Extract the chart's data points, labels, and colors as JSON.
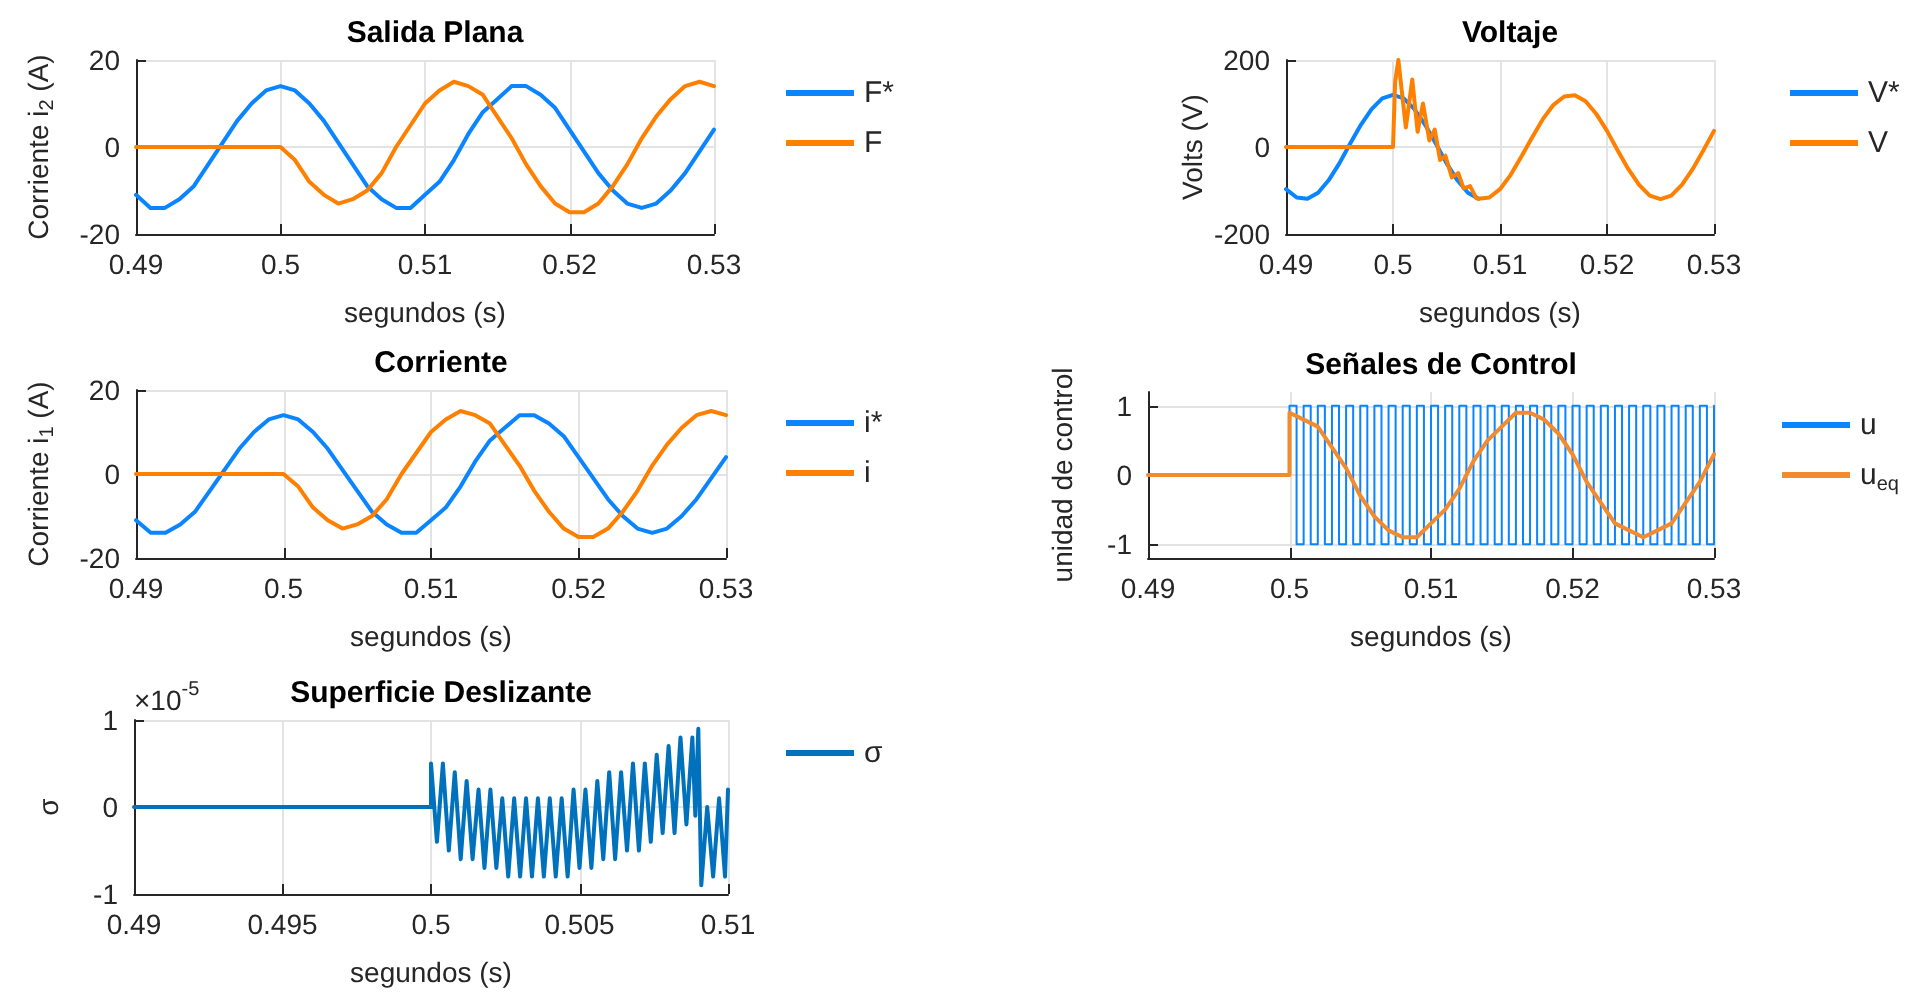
{
  "chart_data": [
    {
      "type": "line",
      "title": "Salida Plana",
      "xlabel": "segundos (s)",
      "ylabel": "Corriente i$_{2}$ (A)",
      "x": [
        0.49,
        0.491,
        0.492,
        0.493,
        0.494,
        0.495,
        0.496,
        0.497,
        0.498,
        0.499,
        0.5,
        0.501,
        0.502,
        0.503,
        0.504,
        0.505,
        0.506,
        0.507,
        0.508,
        0.509,
        0.51,
        0.511,
        0.512,
        0.513,
        0.514,
        0.515,
        0.516,
        0.517,
        0.518,
        0.519,
        0.52,
        0.521,
        0.522,
        0.523,
        0.524,
        0.525,
        0.526,
        0.527,
        0.528,
        0.529,
        0.53
      ],
      "series": [
        {
          "name": "F*",
          "color": "#0a84ff",
          "values": [
            -11,
            -14,
            -14,
            -12,
            -9,
            -4,
            1,
            6,
            10,
            13,
            14,
            13,
            10,
            6,
            1,
            -4,
            -9,
            -12,
            -14,
            -14,
            -11,
            -8,
            -3,
            3,
            8,
            11,
            14,
            14,
            12,
            9,
            4,
            -1,
            -6,
            -10,
            -13,
            -14,
            -13,
            -10,
            -6,
            -1,
            4
          ]
        },
        {
          "name": "F",
          "color": "#ff8000",
          "values": [
            0,
            0,
            0,
            0,
            0,
            0,
            0,
            0,
            0,
            0,
            0,
            -3,
            -8,
            -11,
            -13,
            -12,
            -10,
            -6,
            0,
            5,
            10,
            13,
            15,
            14,
            12,
            7,
            2,
            -4,
            -9,
            -13,
            -15,
            -15,
            -13,
            -9,
            -4,
            2,
            7,
            11,
            14,
            15,
            14
          ]
        }
      ],
      "xlim": [
        0.49,
        0.53
      ],
      "xticks": [
        0.49,
        0.5,
        0.51,
        0.52,
        0.53
      ],
      "ylim": [
        -20,
        20
      ],
      "yticks": [
        -20,
        0,
        20
      ],
      "grid": true,
      "legend": "right"
    },
    {
      "type": "line",
      "title": "Voltaje",
      "xlabel": "segundos (s)",
      "ylabel": "Volts (V)",
      "series": [
        {
          "name": "V*",
          "color": "#0a84ff",
          "x": [
            0.49,
            0.491,
            0.492,
            0.493,
            0.494,
            0.495,
            0.496,
            0.497,
            0.498,
            0.499,
            0.5,
            0.501,
            0.502,
            0.503,
            0.504,
            0.505,
            0.506,
            0.507,
            0.508
          ],
          "values": [
            -97,
            -116,
            -119,
            -105,
            -76,
            -37,
            8,
            51,
            87,
            112,
            120,
            112,
            87,
            51,
            8,
            -37,
            -76,
            -105,
            -119
          ]
        },
        {
          "name": "V",
          "color": "#ff8000",
          "x": [
            0.49,
            0.5,
            0.5002,
            0.5005,
            0.5012,
            0.5018,
            0.5023,
            0.5028,
            0.5034,
            0.5039,
            0.5044,
            0.5049,
            0.5055,
            0.5061,
            0.5066,
            0.5072,
            0.5078,
            0.508,
            0.509,
            0.51,
            0.511,
            0.512,
            0.513,
            0.514,
            0.515,
            0.516,
            0.517,
            0.518,
            0.519,
            0.52,
            0.521,
            0.522,
            0.523,
            0.524,
            0.525,
            0.526,
            0.527,
            0.528,
            0.529,
            0.53
          ],
          "values": [
            0,
            0,
            150,
            200,
            45,
            155,
            35,
            100,
            15,
            40,
            -30,
            -20,
            -70,
            -60,
            -95,
            -90,
            -118,
            -119,
            -116,
            -97,
            -64,
            -22,
            22,
            64,
            97,
            116,
            119,
            105,
            76,
            37,
            -8,
            -51,
            -87,
            -112,
            -120,
            -112,
            -87,
            -51,
            -8,
            37
          ]
        }
      ],
      "xlim": [
        0.49,
        0.53
      ],
      "xticks": [
        0.49,
        0.5,
        0.51,
        0.52,
        0.53
      ],
      "ylim": [
        -200,
        200
      ],
      "yticks": [
        -200,
        0,
        200
      ],
      "grid": true,
      "legend": "right"
    },
    {
      "type": "line",
      "title": "Corriente",
      "xlabel": "segundos (s)",
      "ylabel": "Corriente i$_{1}$ (A)",
      "x": [
        0.49,
        0.491,
        0.492,
        0.493,
        0.494,
        0.495,
        0.496,
        0.497,
        0.498,
        0.499,
        0.5,
        0.501,
        0.502,
        0.503,
        0.504,
        0.505,
        0.506,
        0.507,
        0.508,
        0.509,
        0.51,
        0.511,
        0.512,
        0.513,
        0.514,
        0.515,
        0.516,
        0.517,
        0.518,
        0.519,
        0.52,
        0.521,
        0.522,
        0.523,
        0.524,
        0.525,
        0.526,
        0.527,
        0.528,
        0.529,
        0.53
      ],
      "series": [
        {
          "name": "i*",
          "color": "#0a84ff",
          "values": [
            -11,
            -14,
            -14,
            -12,
            -9,
            -4,
            1,
            6,
            10,
            13,
            14,
            13,
            10,
            6,
            1,
            -4,
            -9,
            -12,
            -14,
            -14,
            -11,
            -8,
            -3,
            3,
            8,
            11,
            14,
            14,
            12,
            9,
            4,
            -1,
            -6,
            -10,
            -13,
            -14,
            -13,
            -10,
            -6,
            -1,
            4
          ]
        },
        {
          "name": "i",
          "color": "#ff8000",
          "values": [
            0,
            0,
            0,
            0,
            0,
            0,
            0,
            0,
            0,
            0,
            0,
            -3,
            -8,
            -11,
            -13,
            -12,
            -10,
            -6,
            0,
            5,
            10,
            13,
            15,
            14,
            12,
            7,
            2,
            -4,
            -9,
            -13,
            -15,
            -15,
            -13,
            -9,
            -4,
            2,
            7,
            11,
            14,
            15,
            14
          ]
        }
      ],
      "xlim": [
        0.49,
        0.53
      ],
      "xticks": [
        0.49,
        0.5,
        0.51,
        0.52,
        0.53
      ],
      "ylim": [
        -20,
        20
      ],
      "yticks": [
        -20,
        0,
        20
      ],
      "grid": true,
      "legend": "right"
    },
    {
      "type": "line",
      "title": "Señales de Control",
      "xlabel": "segundos (s)",
      "ylabel": "unidad de control",
      "series": [
        {
          "name": "u",
          "type": "step",
          "color": "#0a84ff",
          "x": [
            0.49,
            0.5,
            0.5,
            0.5005,
            0.501,
            0.5015,
            0.502,
            0.5025,
            0.503,
            0.5035,
            0.504,
            0.5045,
            0.505,
            0.5055,
            0.506,
            0.5065,
            0.507,
            0.5075,
            0.508,
            0.5085,
            0.509,
            0.5095,
            0.51,
            0.5105,
            0.511,
            0.5115,
            0.512,
            0.5125,
            0.513,
            0.5135,
            0.514,
            0.5145,
            0.515,
            0.5155,
            0.516,
            0.5165,
            0.517,
            0.5175,
            0.518,
            0.5185,
            0.519,
            0.5195,
            0.52,
            0.5205,
            0.521,
            0.5215,
            0.522,
            0.5225,
            0.523,
            0.5235,
            0.524,
            0.5245,
            0.525,
            0.5255,
            0.526,
            0.5265,
            0.527,
            0.5275,
            0.528,
            0.5285,
            0.529,
            0.5295,
            0.53
          ],
          "values": [
            0,
            0,
            1,
            -1,
            1,
            -1,
            1,
            -1,
            1,
            -1,
            1,
            -1,
            1,
            -1,
            1,
            -1,
            1,
            -1,
            1,
            -1,
            1,
            -1,
            1,
            -1,
            1,
            -1,
            1,
            -1,
            1,
            -1,
            1,
            -1,
            1,
            -1,
            1,
            -1,
            1,
            -1,
            1,
            -1,
            1,
            -1,
            1,
            -1,
            1,
            -1,
            1,
            -1,
            1,
            -1,
            1,
            -1,
            1,
            -1,
            1,
            -1,
            1,
            -1,
            1,
            -1,
            1,
            -1,
            1
          ]
        },
        {
          "name": "u$_{eq}$",
          "color": "#f28a2e",
          "x": [
            0.49,
            0.5,
            0.5,
            0.501,
            0.502,
            0.503,
            0.504,
            0.505,
            0.506,
            0.507,
            0.508,
            0.509,
            0.51,
            0.511,
            0.512,
            0.513,
            0.514,
            0.515,
            0.516,
            0.517,
            0.518,
            0.519,
            0.52,
            0.521,
            0.522,
            0.523,
            0.524,
            0.525,
            0.526,
            0.527,
            0.528,
            0.529,
            0.53
          ],
          "values": [
            0,
            0,
            0.9,
            0.8,
            0.7,
            0.4,
            0.1,
            -0.3,
            -0.6,
            -0.8,
            -0.9,
            -0.9,
            -0.7,
            -0.5,
            -0.2,
            0.2,
            0.5,
            0.7,
            0.9,
            0.9,
            0.8,
            0.6,
            0.3,
            -0.1,
            -0.4,
            -0.7,
            -0.8,
            -0.9,
            -0.8,
            -0.7,
            -0.4,
            -0.1,
            0.3
          ]
        }
      ],
      "xlim": [
        0.49,
        0.53
      ],
      "xticks": [
        0.49,
        0.5,
        0.51,
        0.52,
        0.53
      ],
      "ylim": [
        -1.2,
        1.2
      ],
      "yticks": [
        -1,
        0,
        1
      ],
      "grid": true,
      "legend": "right"
    },
    {
      "type": "line",
      "title": "Superficie Deslizante",
      "xlabel": "segundos (s)",
      "ylabel": "σ",
      "annotations": [
        "×10$^{-5}$"
      ],
      "series": [
        {
          "name": "σ",
          "color": "#0072bd",
          "x": [
            0.49,
            0.5,
            0.5,
            0.5002,
            0.5004,
            0.5006,
            0.5008,
            0.501,
            0.5012,
            0.5014,
            0.5016,
            0.5018,
            0.502,
            0.5022,
            0.5024,
            0.5026,
            0.5028,
            0.503,
            0.5032,
            0.5034,
            0.5036,
            0.5038,
            0.504,
            0.5042,
            0.5044,
            0.5046,
            0.5048,
            0.505,
            0.5052,
            0.5054,
            0.5056,
            0.5058,
            0.506,
            0.5062,
            0.5064,
            0.5066,
            0.5068,
            0.507,
            0.5072,
            0.5074,
            0.5076,
            0.5078,
            0.508,
            0.5082,
            0.5084,
            0.5086,
            0.5088,
            0.5089,
            0.509,
            0.5091,
            0.5093,
            0.5095,
            0.5097,
            0.5099,
            0.51
          ],
          "values": [
            0,
            0,
            0.5,
            -0.4,
            0.5,
            -0.5,
            0.4,
            -0.6,
            0.3,
            -0.6,
            0.2,
            -0.7,
            0.2,
            -0.7,
            0.1,
            -0.8,
            0.1,
            -0.8,
            0.1,
            -0.8,
            0.1,
            -0.8,
            0.1,
            -0.8,
            0.1,
            -0.8,
            0.2,
            -0.7,
            0.2,
            -0.7,
            0.3,
            -0.6,
            0.4,
            -0.6,
            0.4,
            -0.5,
            0.5,
            -0.5,
            0.5,
            -0.4,
            0.6,
            -0.3,
            0.7,
            -0.3,
            0.8,
            -0.2,
            0.8,
            -0.1,
            0.9,
            -0.9,
            0.0,
            -0.8,
            0.1,
            -0.8,
            0.2
          ]
        }
      ],
      "xlim": [
        0.49,
        0.51
      ],
      "xticks": [
        0.49,
        0.495,
        0.5,
        0.505,
        0.51
      ],
      "ylim": [
        -1,
        1
      ],
      "yticks": [
        -1,
        0,
        1
      ],
      "grid": true,
      "legend": "right"
    }
  ]
}
